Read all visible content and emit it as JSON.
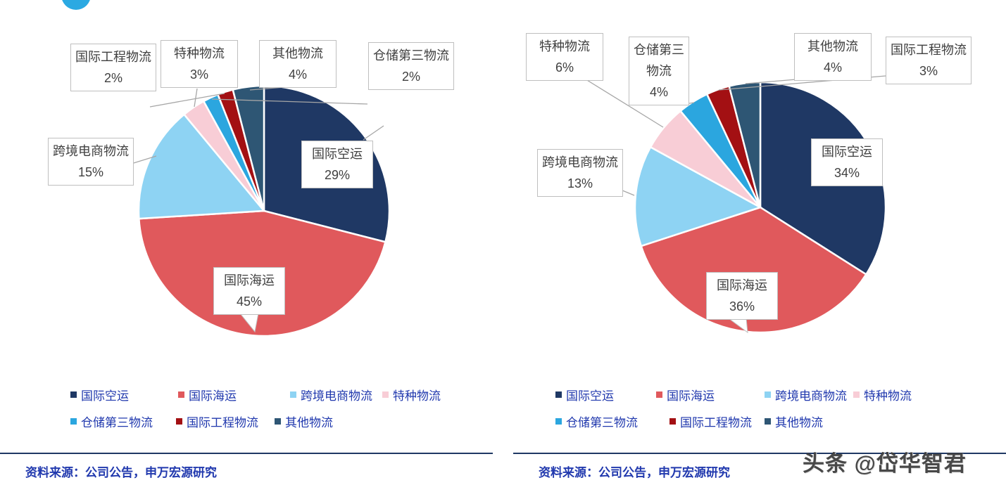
{
  "page": {
    "source_note": "资料来源：公司公告，申万宏源研究",
    "watermark": "头条 @岱华智君"
  },
  "colors": {
    "series": [
      "#1F3864",
      "#E0595C",
      "#8ED3F3",
      "#F8CDD6",
      "#2BA6DF",
      "#A31013",
      "#2E5674"
    ],
    "legend_text": "#2139AE",
    "source_text": "#2139AE",
    "divider": "#1F3864",
    "leader_line": "#A6A6A6",
    "label_border": "#BFBFBF",
    "label_text": "#404040",
    "logo_dot": "#2BA9E2",
    "background": "#FFFFFF"
  },
  "chart_data": [
    {
      "type": "pie",
      "title": "",
      "categories": [
        "国际空运",
        "国际海运",
        "跨境电商物流",
        "特种物流",
        "仓储第三物流",
        "国际工程物流",
        "其他物流"
      ],
      "values": [
        29,
        45,
        15,
        3,
        2,
        2,
        4
      ],
      "unit": "%",
      "value_labels": [
        "29%",
        "45%",
        "15%",
        "3%",
        "2%",
        "2%",
        "4%"
      ],
      "legend_position": "bottom",
      "legend_rows": [
        [
          0,
          1,
          2,
          3
        ],
        [
          4,
          5,
          6
        ]
      ],
      "source": "资料来源：公司公告，申万宏源研究"
    },
    {
      "type": "pie",
      "title": "",
      "categories": [
        "国际空运",
        "国际海运",
        "跨境电商物流",
        "特种物流",
        "仓储第三物流",
        "国际工程物流",
        "其他物流"
      ],
      "values": [
        34,
        36,
        13,
        6,
        4,
        3,
        4
      ],
      "unit": "%",
      "value_labels": [
        "34%",
        "36%",
        "13%",
        "6%",
        "4%",
        "3%",
        "4%"
      ],
      "legend_position": "bottom",
      "legend_rows": [
        [
          0,
          1,
          2,
          3
        ],
        [
          4,
          5,
          6
        ]
      ],
      "source": "资料来源：公司公告，申万宏源研究"
    }
  ]
}
